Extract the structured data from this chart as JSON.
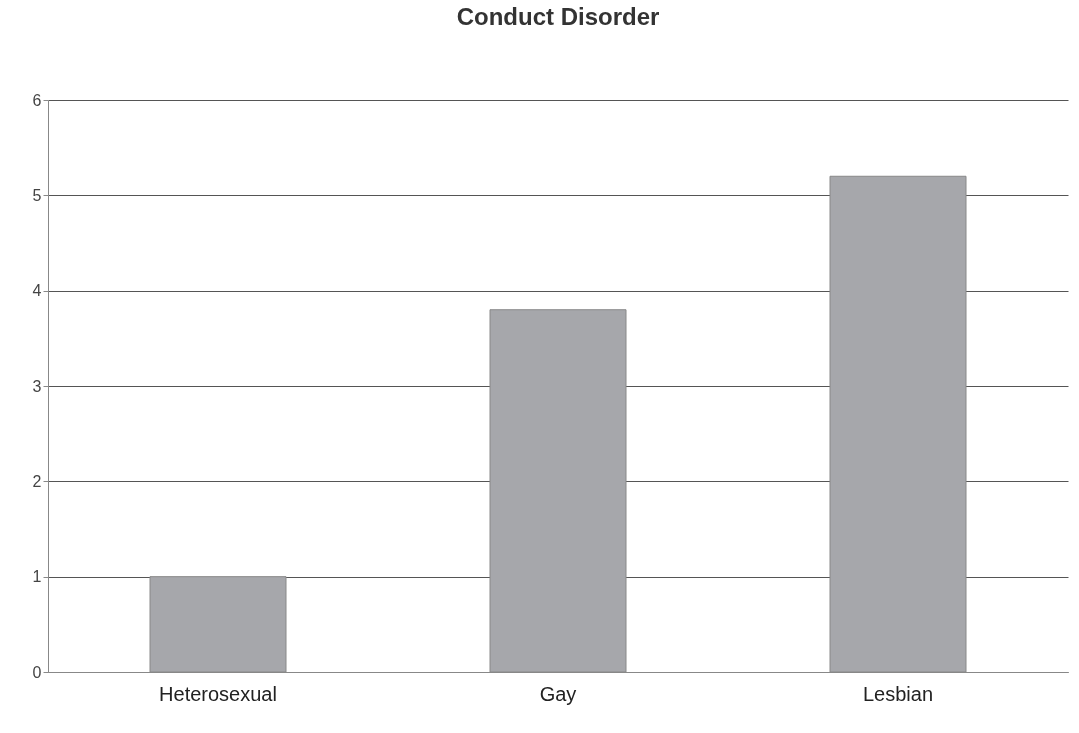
{
  "chart_data": {
    "type": "bar",
    "title": "Conduct Disorder",
    "categories": [
      "Heterosexual",
      "Gay",
      "Lesbian"
    ],
    "values": [
      1,
      3.8,
      5.2
    ],
    "color": "#a6a7ab",
    "ylim": [
      0,
      6
    ],
    "yticks": [
      0,
      1,
      2,
      3,
      4,
      5,
      6
    ],
    "grid": "y"
  }
}
